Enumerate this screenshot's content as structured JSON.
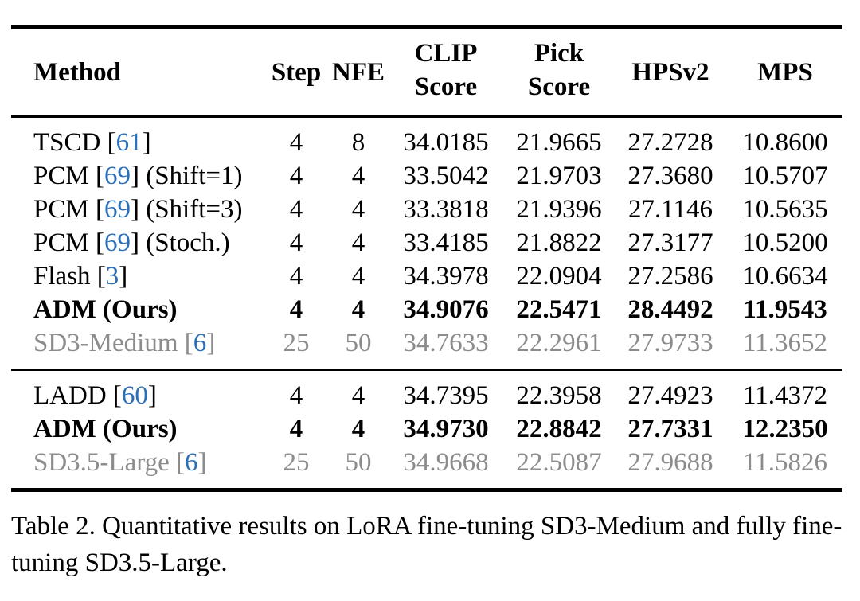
{
  "table": {
    "headers": {
      "method": "Method",
      "step": "Step",
      "nfe": "NFE",
      "clip_line1": "CLIP",
      "clip_line2": "Score",
      "pick_line1": "Pick",
      "pick_line2": "Score",
      "hpsv2": "HPSv2",
      "mps": "MPS"
    },
    "rows": [
      {
        "name": "TSCD",
        "cite": "61",
        "suffix": "",
        "step": "4",
        "nfe": "8",
        "clip": "34.0185",
        "pick": "21.9665",
        "hps": "27.2728",
        "mps": "10.8600"
      },
      {
        "name": "PCM",
        "cite": "69",
        "suffix": " (Shift=1)",
        "step": "4",
        "nfe": "4",
        "clip": "33.5042",
        "pick": "21.9703",
        "hps": "27.3680",
        "mps": "10.5707"
      },
      {
        "name": "PCM",
        "cite": "69",
        "suffix": " (Shift=3)",
        "step": "4",
        "nfe": "4",
        "clip": "33.3818",
        "pick": "21.9396",
        "hps": "27.1146",
        "mps": "10.5635"
      },
      {
        "name": "PCM",
        "cite": "69",
        "suffix": " (Stoch.)",
        "step": "4",
        "nfe": "4",
        "clip": "33.4185",
        "pick": "21.8822",
        "hps": "27.3177",
        "mps": "10.5200"
      },
      {
        "name": "Flash",
        "cite": "3",
        "suffix": "",
        "step": "4",
        "nfe": "4",
        "clip": "34.3978",
        "pick": "22.0904",
        "hps": "27.2586",
        "mps": "10.6634"
      },
      {
        "name": "ADM (Ours)",
        "step": "4",
        "nfe": "4",
        "clip": "34.9076",
        "pick": "22.5471",
        "hps": "28.4492",
        "mps": "11.9543"
      },
      {
        "name": "SD3-Medium",
        "cite": "6",
        "suffix": "",
        "step": "25",
        "nfe": "50",
        "clip": "34.7633",
        "pick": "22.2961",
        "hps": "27.9733",
        "mps": "11.3652"
      },
      {
        "name": "LADD",
        "cite": "60",
        "suffix": "",
        "step": "4",
        "nfe": "4",
        "clip": "34.7395",
        "pick": "22.3958",
        "hps": "27.4923",
        "mps": "11.4372"
      },
      {
        "name": "ADM (Ours)",
        "step": "4",
        "nfe": "4",
        "clip": "34.9730",
        "pick": "22.8842",
        "hps": "27.7331",
        "mps": "12.2350"
      },
      {
        "name": "SD3.5-Large",
        "cite": "6",
        "suffix": "",
        "step": "25",
        "nfe": "50",
        "clip": "34.9668",
        "pick": "22.5087",
        "hps": "27.9688",
        "mps": "11.5826"
      }
    ]
  },
  "caption": "Table 2.  Quantitative results on LoRA fine-tuning SD3-Medium and fully fine-tuning SD3.5-Large.",
  "colors": {
    "citation": "#2a6fb8",
    "baseline_gray": "#8c8c8c"
  }
}
